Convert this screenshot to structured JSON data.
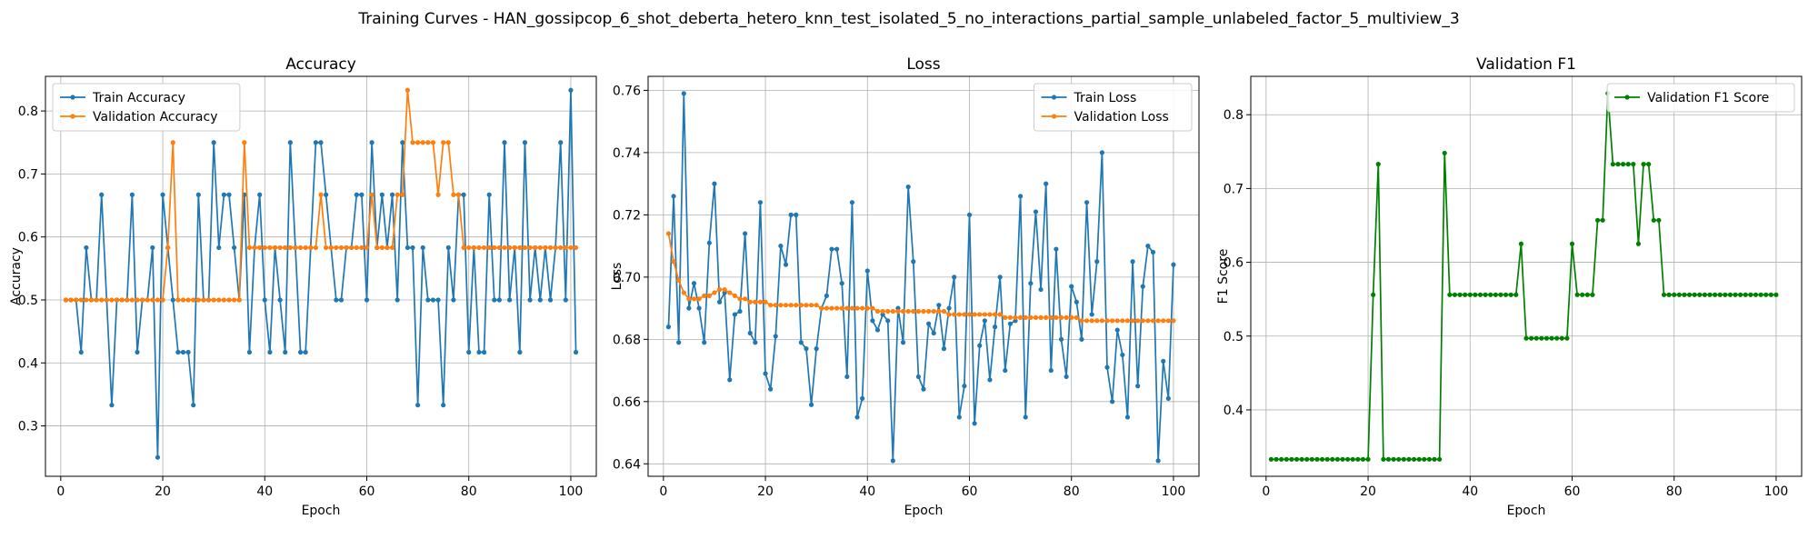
{
  "suptitle": "Training Curves - HAN_gossipcop_6_shot_deberta_hetero_knn_test_isolated_5_no_interactions_partial_sample_unlabeled_factor_5_multiview_3",
  "colors": {
    "blue": "#1f77b4",
    "orange": "#ff7f0e",
    "green": "#008000"
  },
  "chart_data": [
    {
      "type": "line",
      "title": "Accuracy",
      "xlabel": "Epoch",
      "ylabel": "Accuracy",
      "xlim": [
        -3,
        105
      ],
      "ylim": [
        0.22,
        0.855
      ],
      "xticks": [
        0,
        20,
        40,
        60,
        80,
        100
      ],
      "yticks": [
        0.3,
        0.4,
        0.5,
        0.6,
        0.7,
        0.8
      ],
      "grid": true,
      "legend": "top-left",
      "series": [
        {
          "name": "Train Accuracy",
          "color": "#1f77b4",
          "values": [
            0.5,
            0.5,
            0.5,
            0.417,
            0.583,
            0.5,
            0.5,
            0.667,
            0.5,
            0.333,
            0.5,
            0.5,
            0.5,
            0.667,
            0.417,
            0.5,
            0.5,
            0.583,
            0.25,
            0.667,
            0.583,
            0.5,
            0.417,
            0.417,
            0.417,
            0.333,
            0.667,
            0.5,
            0.5,
            0.75,
            0.583,
            0.667,
            0.667,
            0.583,
            0.5,
            0.667,
            0.417,
            0.583,
            0.667,
            0.5,
            0.417,
            0.583,
            0.5,
            0.417,
            0.75,
            0.583,
            0.417,
            0.417,
            0.583,
            0.75,
            0.75,
            0.667,
            0.583,
            0.5,
            0.5,
            0.583,
            0.583,
            0.667,
            0.667,
            0.5,
            0.75,
            0.583,
            0.667,
            0.583,
            0.667,
            0.5,
            0.75,
            0.583,
            0.583,
            0.333,
            0.583,
            0.5,
            0.5,
            0.5,
            0.333,
            0.583,
            0.5,
            0.667,
            0.667,
            0.417,
            0.583,
            0.417,
            0.417,
            0.667,
            0.5,
            0.5,
            0.75,
            0.5,
            0.583,
            0.417,
            0.75,
            0.5,
            0.583,
            0.5,
            0.583,
            0.5,
            0.583,
            0.75,
            0.5,
            0.833,
            0.417
          ]
        },
        {
          "name": "Validation Accuracy",
          "color": "#ff7f0e",
          "values": [
            0.5,
            0.5,
            0.5,
            0.5,
            0.5,
            0.5,
            0.5,
            0.5,
            0.5,
            0.5,
            0.5,
            0.5,
            0.5,
            0.5,
            0.5,
            0.5,
            0.5,
            0.5,
            0.5,
            0.5,
            0.583,
            0.75,
            0.5,
            0.5,
            0.5,
            0.5,
            0.5,
            0.5,
            0.5,
            0.5,
            0.5,
            0.5,
            0.5,
            0.5,
            0.5,
            0.75,
            0.583,
            0.583,
            0.583,
            0.583,
            0.583,
            0.583,
            0.583,
            0.583,
            0.583,
            0.583,
            0.583,
            0.583,
            0.583,
            0.583,
            0.667,
            0.583,
            0.583,
            0.583,
            0.583,
            0.583,
            0.583,
            0.583,
            0.583,
            0.583,
            0.667,
            0.583,
            0.583,
            0.583,
            0.583,
            0.667,
            0.667,
            0.833,
            0.75,
            0.75,
            0.75,
            0.75,
            0.75,
            0.667,
            0.75,
            0.75,
            0.667,
            0.667,
            0.583,
            0.583,
            0.583,
            0.583,
            0.583,
            0.583,
            0.583,
            0.583,
            0.583,
            0.583,
            0.583,
            0.583,
            0.583,
            0.583,
            0.583,
            0.583,
            0.583,
            0.583,
            0.583,
            0.583,
            0.583,
            0.583,
            0.583
          ]
        }
      ]
    },
    {
      "type": "line",
      "title": "Loss",
      "xlabel": "Epoch",
      "ylabel": "Loss",
      "xlim": [
        -3,
        105
      ],
      "ylim": [
        0.636,
        0.7645
      ],
      "xticks": [
        0,
        20,
        40,
        60,
        80,
        100
      ],
      "yticks": [
        0.64,
        0.66,
        0.68,
        0.7,
        0.72,
        0.74,
        0.76
      ],
      "grid": true,
      "legend": "top-right",
      "series": [
        {
          "name": "Train Loss",
          "color": "#1f77b4",
          "values": [
            0.684,
            0.726,
            0.679,
            0.759,
            0.69,
            0.698,
            0.69,
            0.679,
            0.711,
            0.73,
            0.692,
            0.695,
            0.667,
            0.688,
            0.689,
            0.714,
            0.682,
            0.679,
            0.724,
            0.669,
            0.664,
            0.681,
            0.71,
            0.704,
            0.72,
            0.72,
            0.679,
            0.677,
            0.659,
            0.677,
            0.69,
            0.694,
            0.709,
            0.709,
            0.698,
            0.668,
            0.724,
            0.655,
            0.661,
            0.702,
            0.686,
            0.683,
            0.688,
            0.686,
            0.641,
            0.69,
            0.679,
            0.729,
            0.705,
            0.668,
            0.664,
            0.685,
            0.682,
            0.691,
            0.677,
            0.69,
            0.7,
            0.655,
            0.665,
            0.72,
            0.653,
            0.678,
            0.686,
            0.667,
            0.684,
            0.7,
            0.67,
            0.685,
            0.686,
            0.726,
            0.655,
            0.698,
            0.721,
            0.696,
            0.73,
            0.67,
            0.709,
            0.68,
            0.668,
            0.697,
            0.692,
            0.68,
            0.724,
            0.688,
            0.705,
            0.74,
            0.671,
            0.66,
            0.683,
            0.675,
            0.655,
            0.705,
            0.665,
            0.697,
            0.71,
            0.708,
            0.641,
            0.673,
            0.661,
            0.704
          ]
        },
        {
          "name": "Validation Loss",
          "color": "#ff7f0e",
          "values": [
            0.714,
            0.705,
            0.699,
            0.695,
            0.693,
            0.693,
            0.693,
            0.694,
            0.694,
            0.695,
            0.696,
            0.696,
            0.695,
            0.694,
            0.693,
            0.693,
            0.692,
            0.692,
            0.692,
            0.692,
            0.691,
            0.691,
            0.691,
            0.691,
            0.691,
            0.691,
            0.691,
            0.691,
            0.691,
            0.691,
            0.69,
            0.69,
            0.69,
            0.69,
            0.69,
            0.69,
            0.69,
            0.69,
            0.69,
            0.69,
            0.69,
            0.689,
            0.689,
            0.689,
            0.689,
            0.689,
            0.689,
            0.689,
            0.689,
            0.689,
            0.689,
            0.689,
            0.689,
            0.689,
            0.689,
            0.688,
            0.688,
            0.688,
            0.688,
            0.688,
            0.688,
            0.688,
            0.688,
            0.688,
            0.688,
            0.688,
            0.687,
            0.687,
            0.687,
            0.687,
            0.687,
            0.687,
            0.687,
            0.687,
            0.687,
            0.687,
            0.687,
            0.687,
            0.687,
            0.687,
            0.687,
            0.686,
            0.686,
            0.686,
            0.686,
            0.686,
            0.686,
            0.686,
            0.686,
            0.686,
            0.686,
            0.686,
            0.686,
            0.686,
            0.686,
            0.686,
            0.686,
            0.686,
            0.686,
            0.686
          ]
        }
      ]
    },
    {
      "type": "line",
      "title": "Validation F1",
      "xlabel": "Epoch",
      "ylabel": "F1 Score",
      "xlim": [
        -3,
        105
      ],
      "ylim": [
        0.31,
        0.852
      ],
      "xticks": [
        0,
        20,
        40,
        60,
        80,
        100
      ],
      "yticks": [
        0.4,
        0.5,
        0.6,
        0.7,
        0.8
      ],
      "grid": true,
      "legend": "top-right",
      "series": [
        {
          "name": "Validation F1 Score",
          "color": "#008000",
          "values": [
            0.333,
            0.333,
            0.333,
            0.333,
            0.333,
            0.333,
            0.333,
            0.333,
            0.333,
            0.333,
            0.333,
            0.333,
            0.333,
            0.333,
            0.333,
            0.333,
            0.333,
            0.333,
            0.333,
            0.333,
            0.556,
            0.733,
            0.333,
            0.333,
            0.333,
            0.333,
            0.333,
            0.333,
            0.333,
            0.333,
            0.333,
            0.333,
            0.333,
            0.333,
            0.748,
            0.556,
            0.556,
            0.556,
            0.556,
            0.556,
            0.556,
            0.556,
            0.556,
            0.556,
            0.556,
            0.556,
            0.556,
            0.556,
            0.556,
            0.625,
            0.497,
            0.497,
            0.497,
            0.497,
            0.497,
            0.497,
            0.497,
            0.497,
            0.497,
            0.625,
            0.556,
            0.556,
            0.556,
            0.556,
            0.657,
            0.657,
            0.829,
            0.733,
            0.733,
            0.733,
            0.733,
            0.733,
            0.625,
            0.733,
            0.733,
            0.657,
            0.657,
            0.556,
            0.556,
            0.556,
            0.556,
            0.556,
            0.556,
            0.556,
            0.556,
            0.556,
            0.556,
            0.556,
            0.556,
            0.556,
            0.556,
            0.556,
            0.556,
            0.556,
            0.556,
            0.556,
            0.556,
            0.556,
            0.556,
            0.556
          ]
        }
      ]
    }
  ]
}
